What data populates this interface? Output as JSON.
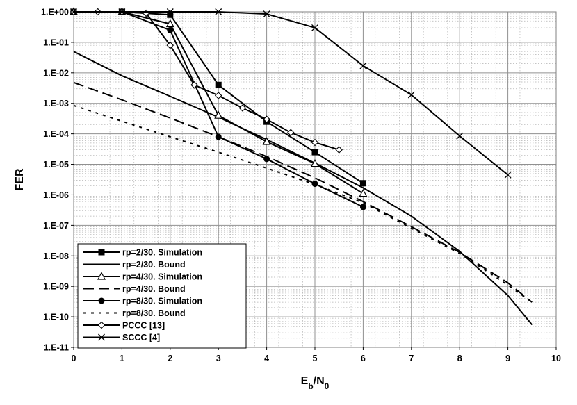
{
  "chart_data": {
    "type": "line",
    "title": "",
    "xlabel": {
      "main": "E",
      "sub1": "b",
      "mid": "/N",
      "sub2": "0"
    },
    "ylabel": "FER",
    "xlim": [
      0,
      10
    ],
    "ylim_exponents": [
      -11,
      0
    ],
    "y_scale": "log",
    "grid": true,
    "legend_position": "bottom-left",
    "x_ticks": [
      "0",
      "1",
      "2",
      "3",
      "4",
      "5",
      "6",
      "7",
      "8",
      "9",
      "10"
    ],
    "y_ticks": [
      "1.E-11",
      "1.E-10",
      "1.E-09",
      "1.E-08",
      "1.E-07",
      "1.E-06",
      "1.E-05",
      "1.E-04",
      "1.E-03",
      "1.E-02",
      "1.E-01",
      "1.E+00"
    ],
    "series": [
      {
        "name": "rp=2/30. Simulation",
        "style": "solid",
        "marker": "square-filled",
        "x": [
          0,
          1,
          2,
          3,
          4,
          5,
          6
        ],
        "y": [
          1,
          1,
          0.8,
          0.004,
          0.00025,
          2.5e-05,
          2.4e-06
        ]
      },
      {
        "name": "rp=2/30. Bound",
        "style": "solid",
        "marker": "none",
        "x": [
          0,
          1,
          2,
          3,
          4,
          5,
          6,
          7,
          8,
          9,
          9.5
        ],
        "y": [
          0.05,
          0.008,
          0.0017,
          0.00035,
          6.5e-05,
          1.1e-05,
          1.7e-06,
          2e-07,
          1.4e-08,
          5e-10,
          5.5e-11
        ]
      },
      {
        "name": "rp=4/30. Simulation",
        "style": "solid",
        "marker": "triangle-open",
        "x": [
          0,
          1,
          2,
          3,
          4,
          5,
          6
        ],
        "y": [
          1,
          1,
          0.4,
          0.0004,
          5.5e-05,
          1.05e-05,
          1.1e-06
        ]
      },
      {
        "name": "rp=4/30. Bound",
        "style": "dashed",
        "marker": "none",
        "x": [
          0,
          1,
          2,
          3,
          4,
          5,
          6,
          7,
          8,
          9,
          9.5
        ],
        "y": [
          0.0048,
          0.0013,
          0.00033,
          8e-05,
          1.8e-05,
          3.6e-06,
          6e-07,
          9e-08,
          1.3e-08,
          1.3e-09,
          3e-10
        ]
      },
      {
        "name": "rp=8/30. Simulation",
        "style": "solid",
        "marker": "circle-filled",
        "x": [
          0,
          1,
          2,
          3,
          4,
          5,
          6
        ],
        "y": [
          1,
          1,
          0.25,
          8e-05,
          1.5e-05,
          2.3e-06,
          4e-07
        ]
      },
      {
        "name": "rp=8/30. Bound",
        "style": "dotted",
        "marker": "none",
        "x": [
          0,
          1,
          2,
          3,
          4,
          5,
          6,
          7,
          8,
          9,
          9.5
        ],
        "y": [
          0.00085,
          0.00026,
          8e-05,
          2.5e-05,
          7.5e-06,
          2.2e-06,
          5.5e-07,
          8e-08,
          1.2e-08,
          1.1e-09,
          3e-10
        ]
      },
      {
        "name": "PCCC [13]",
        "style": "solid",
        "marker": "diamond-open",
        "x": [
          0,
          0.5,
          1,
          1.5,
          2,
          2.5,
          3,
          3.5,
          4,
          4.5,
          5,
          5.5
        ],
        "y": [
          1,
          1,
          1,
          0.9,
          0.08,
          0.004,
          0.0018,
          0.0007,
          0.0003,
          0.00011,
          5.2e-05,
          3e-05
        ]
      },
      {
        "name": "SCCC [4]",
        "style": "solid",
        "marker": "x",
        "x": [
          0,
          1,
          2,
          3,
          4,
          5,
          6,
          7,
          8,
          9
        ],
        "y": [
          1,
          1,
          1,
          1,
          0.85,
          0.3,
          0.017,
          0.0019,
          8.5e-05,
          4.5e-06
        ]
      }
    ]
  }
}
